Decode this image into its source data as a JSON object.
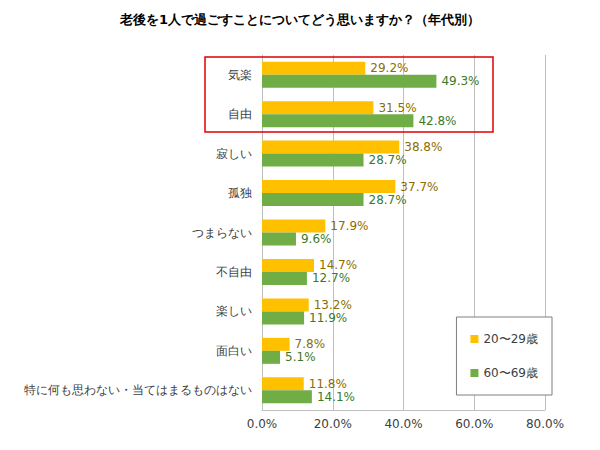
{
  "chart_data": {
    "type": "bar",
    "orientation": "horizontal",
    "title": "老後を1人で過ごすことについてどう思いますか？（年代別）",
    "categories": [
      "気楽",
      "自由",
      "寂しい",
      "孤独",
      "つまらない",
      "不自由",
      "楽しい",
      "面白い",
      "特に何も思わない・当てはまるものはない"
    ],
    "series": [
      {
        "name": "20〜29歳",
        "color": "#ffc000",
        "values": [
          29.2,
          31.5,
          38.8,
          37.7,
          17.9,
          14.7,
          13.2,
          7.8,
          11.8
        ],
        "value_labels": [
          "29.2%",
          "31.5%",
          "38.8%",
          "37.7%",
          "17.9%",
          "14.7%",
          "13.2%",
          "7.8%",
          "11.8%"
        ]
      },
      {
        "name": "60〜69歳",
        "color": "#70ad47",
        "values": [
          49.3,
          42.8,
          28.7,
          28.7,
          9.6,
          12.7,
          11.9,
          5.1,
          14.1
        ],
        "value_labels": [
          "49.3%",
          "42.8%",
          "28.7%",
          "28.7%",
          "9.6%",
          "12.7%",
          "11.9%",
          "5.1%",
          "14.1%"
        ]
      }
    ],
    "xlim": [
      0,
      80
    ],
    "xticks": [
      {
        "value": 0,
        "label": "0.0%"
      },
      {
        "value": 20,
        "label": "20.0%"
      },
      {
        "value": 40,
        "label": "40.0%"
      },
      {
        "value": 60,
        "label": "60.0%"
      },
      {
        "value": 80,
        "label": "80.0%"
      }
    ],
    "grid": true,
    "legend": "lower right",
    "data_labels": true
  }
}
